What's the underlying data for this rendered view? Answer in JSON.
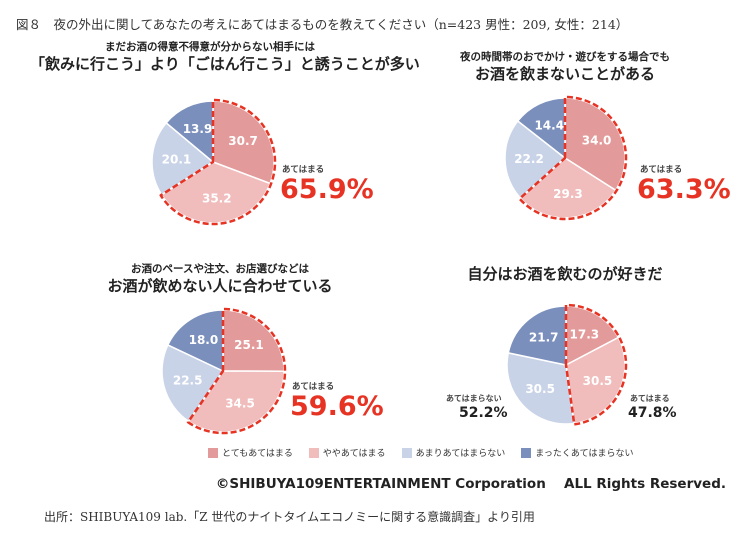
{
  "figure_title": "図８　夜の外出に関してあなたの考えにあてはまるものを教えてください（n=423 男性：209, 女性：214）",
  "legend": [
    {
      "label": "とてもあてはまる",
      "color": "#e39a9a"
    },
    {
      "label": "ややあてはまる",
      "color": "#f0bcbc"
    },
    {
      "label": "あまりあてはまらない",
      "color": "#c9d3e8"
    },
    {
      "label": "まったくあてはまらない",
      "color": "#7b8fbc"
    }
  ],
  "highlight_color": "#e63323",
  "chart_data": [
    {
      "type": "pie",
      "title_line1": "まだお酒の得意不得意が分からない相手には",
      "title_line2": "「飲みに行こう」より「ごはん行こう」と誘うことが多い",
      "values": [
        30.7,
        35.2,
        20.1,
        13.9
      ],
      "value_labels": [
        "30.7",
        "35.2",
        "20.1",
        "13.9"
      ],
      "agree_label": "あてはまる",
      "agree_value": "65.9%"
    },
    {
      "type": "pie",
      "title_line1": "夜の時間帯のおでかけ・遊びをする場合でも",
      "title_line2": "お酒を飲まないことがある",
      "values": [
        34.0,
        29.3,
        22.2,
        14.4
      ],
      "value_labels": [
        "34.0",
        "29.3",
        "22.2",
        "14.4"
      ],
      "agree_label": "あてはまる",
      "agree_value": "63.3%"
    },
    {
      "type": "pie",
      "title_line1": "お酒のペースや注文、お店選びなどは",
      "title_line2": "お酒が飲めない人に合わせている",
      "values": [
        25.1,
        34.5,
        22.5,
        18.0
      ],
      "value_labels": [
        "25.1",
        "34.5",
        "22.5",
        "18.0"
      ],
      "agree_label": "あてはまる",
      "agree_value": "59.6%"
    },
    {
      "type": "pie",
      "title_line1": "",
      "title_line2": "自分はお酒を飲むのが好きだ",
      "values": [
        17.3,
        30.5,
        30.5,
        21.7
      ],
      "value_labels": [
        "17.3",
        "30.5",
        "30.5",
        "21.7"
      ],
      "agree_label": "あてはまる",
      "agree_value": "47.8%",
      "disagree_label": "あてはまらない",
      "disagree_value": "52.2%"
    }
  ],
  "copyright": "©SHIBUYA109ENTERTAINMENT Corporation　 ALL Rights Reserved.",
  "source": "出所：SHIBUYA109 lab.「Z 世代のナイトタイムエコノミーに関する意識調査」より引用"
}
